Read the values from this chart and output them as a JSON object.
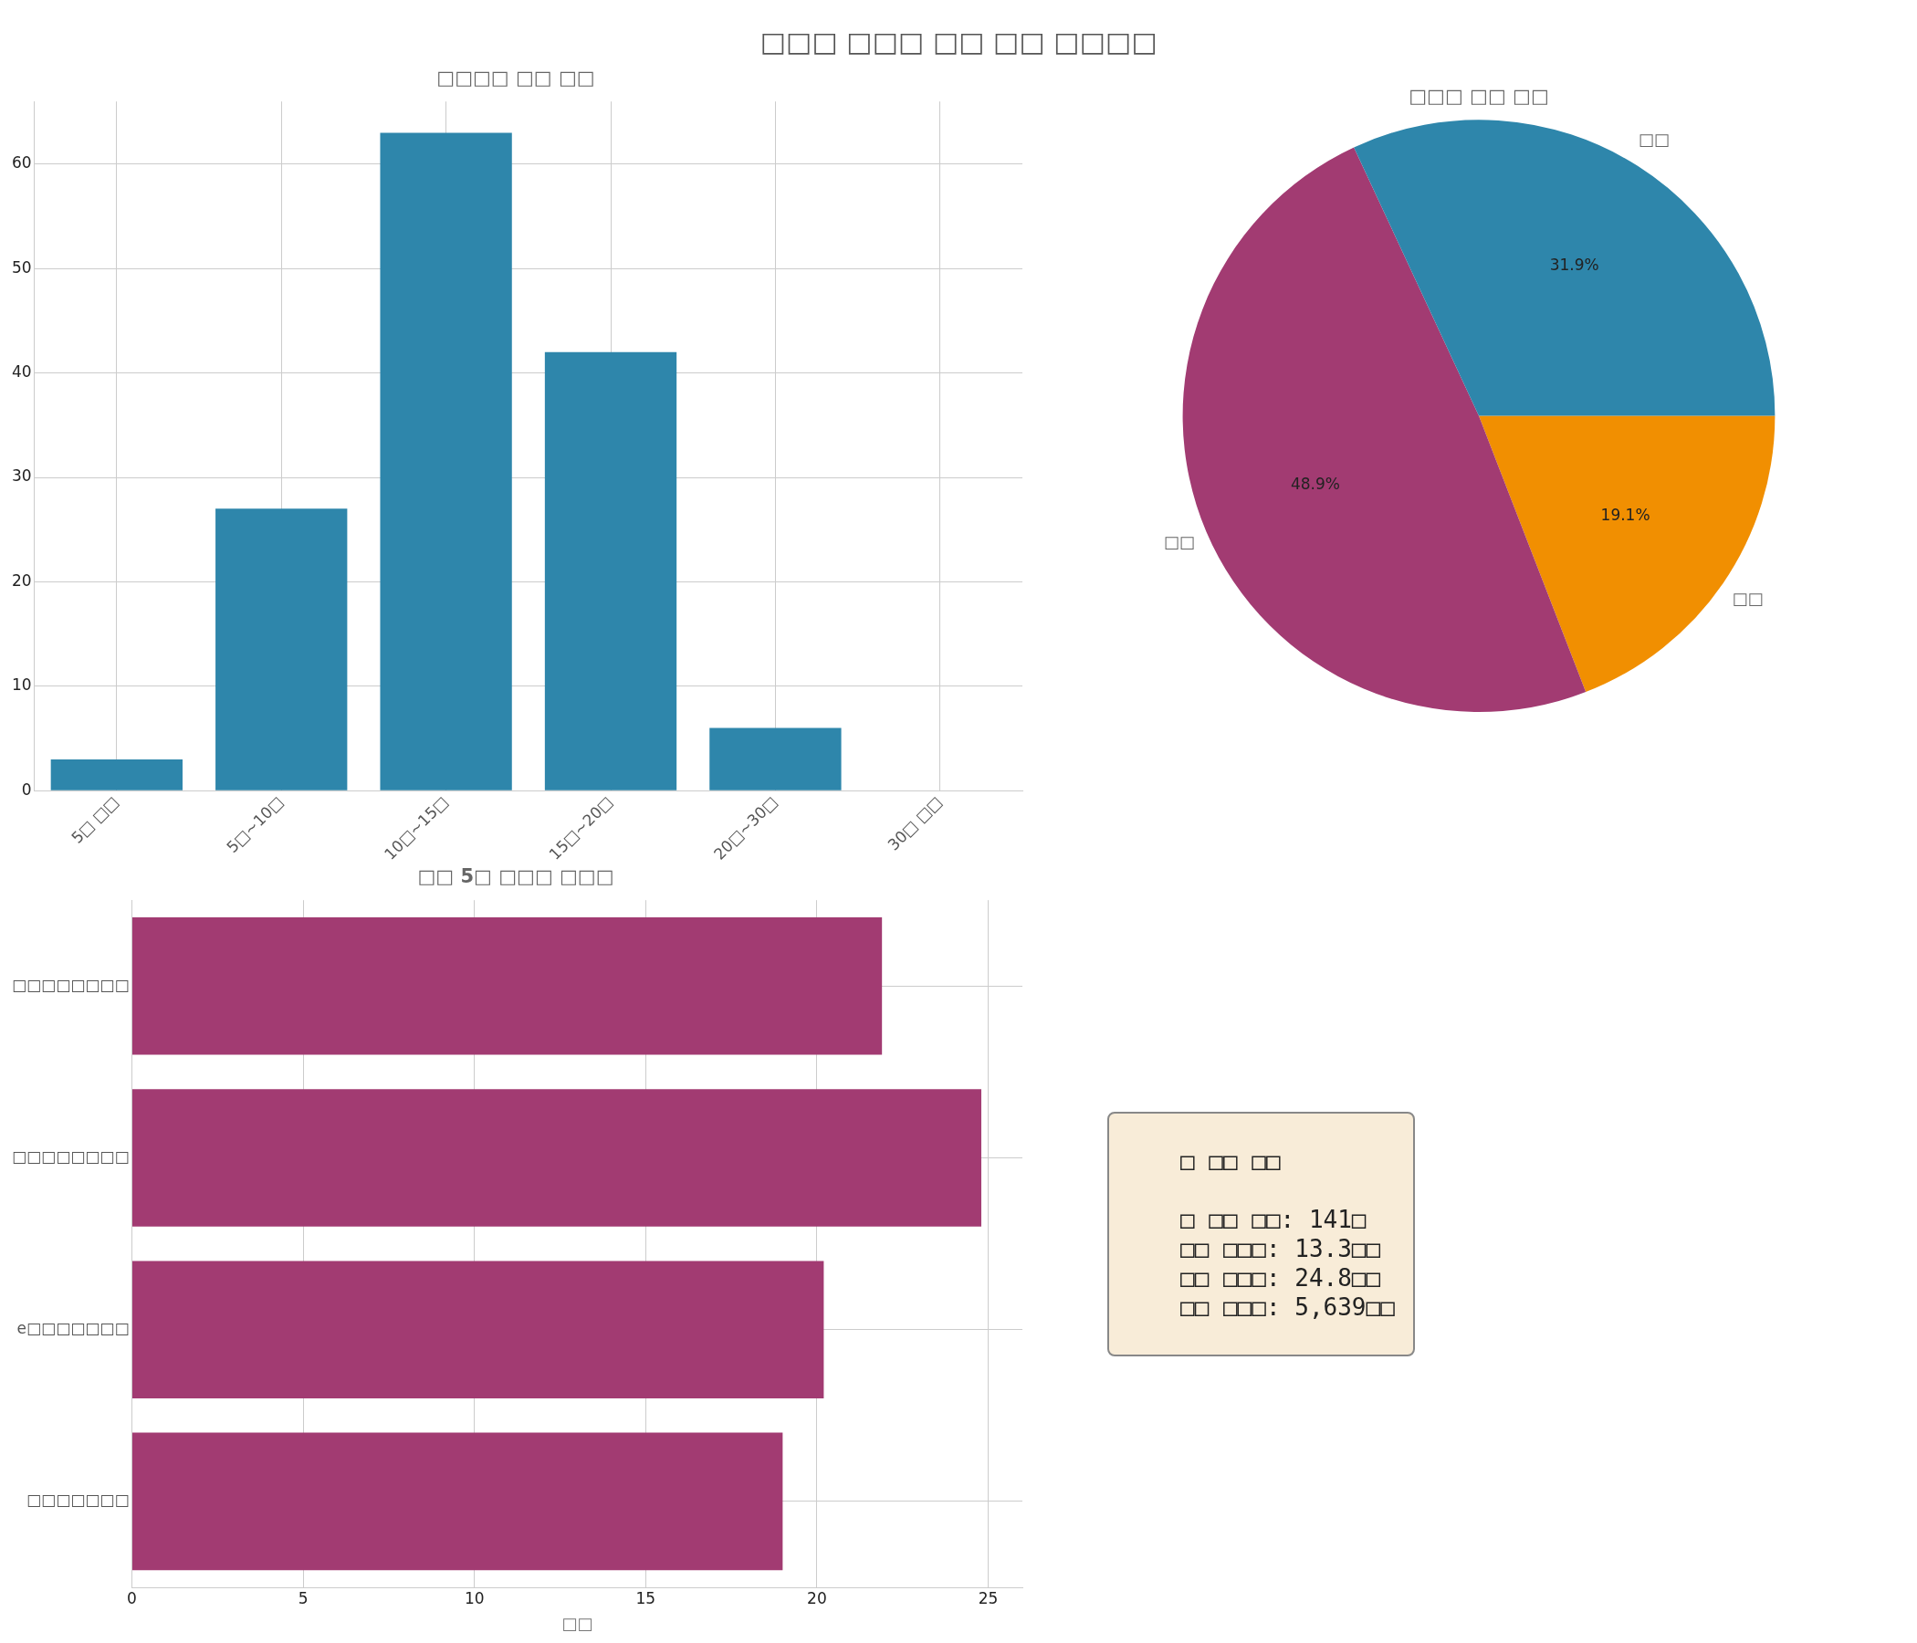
{
  "chart_data": [
    {
      "type": "bar",
      "title": "□□□□ □□ □□",
      "annotations": [
        "□□□ □□□ □□ □□ □□□□"
      ],
      "categories": [
        "5□ □□",
        "5□~10□",
        "10□~15□",
        "15□~20□",
        "20□~30□",
        "30□ □□"
      ],
      "values": [
        3,
        27,
        63,
        42,
        6,
        0
      ],
      "color": "#2e86ab",
      "ylim": [
        0,
        66
      ],
      "yticks": [
        0,
        10,
        20,
        30,
        40,
        50,
        60
      ],
      "grid": true
    },
    {
      "type": "pie",
      "title": "□□□ □□ □□",
      "categories": [
        "□□",
        "□□",
        "□□"
      ],
      "values": [
        31.9,
        48.9,
        19.1
      ],
      "colors": [
        "#2e86ab",
        "#a23b72",
        "#f18f01"
      ],
      "value_labels": [
        "31.9%",
        "48.9%",
        "19.1%"
      ]
    },
    {
      "type": "bar",
      "orientation": "horizontal",
      "title": "□□ 5□ □□□ □□□",
      "xlabel": "□□",
      "categories": [
        "□□□□□□□□",
        "□□□□□□□□",
        "e□□□□□□□",
        "□□□□□□□"
      ],
      "values": [
        21.9,
        24.8,
        20.2,
        19.0
      ],
      "color": "#a23b72",
      "xlim": [
        0,
        26
      ],
      "xticks": [
        0,
        5,
        10,
        15,
        20,
        25
      ],
      "grid": true
    },
    {
      "type": "other",
      "title": "□ □□ □□",
      "annotations": [
        "□ □□ □□: 141□",
        "□□ □□□: 13.3□□",
        "□□ □□□: 24.8□□",
        "□□ □□□: 5,639□□"
      ]
    }
  ]
}
